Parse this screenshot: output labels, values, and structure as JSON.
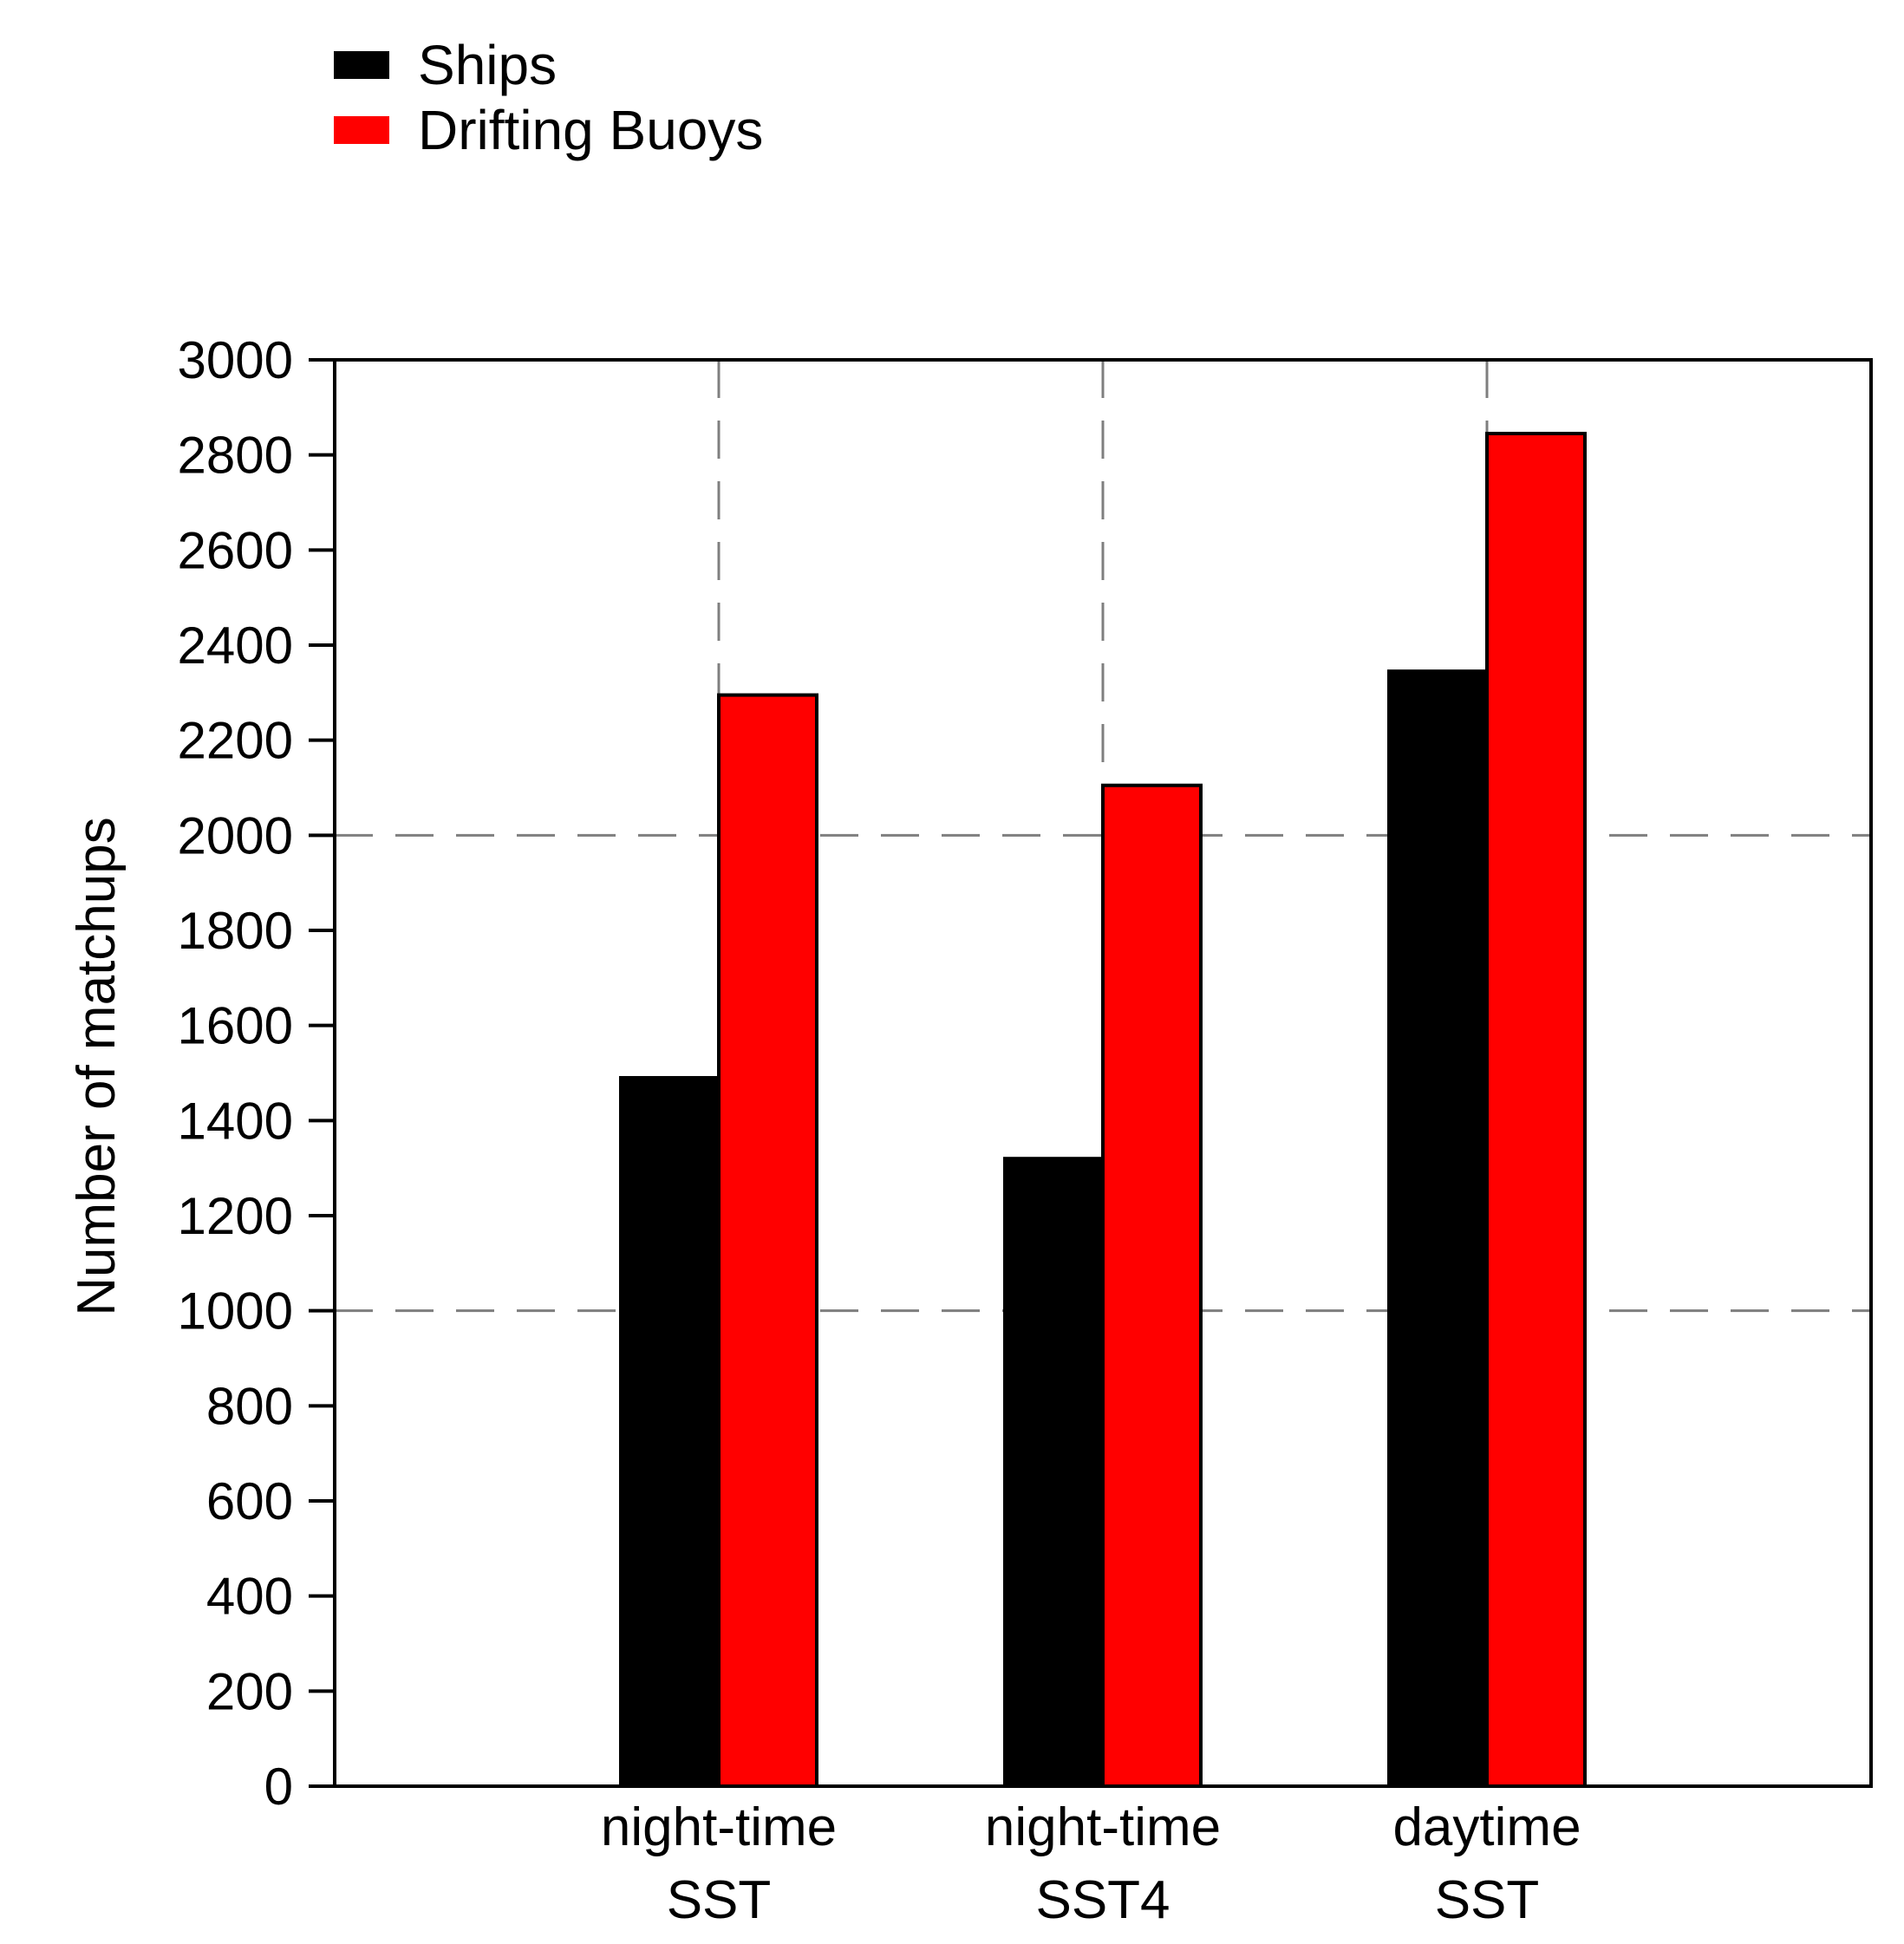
{
  "chart_data": {
    "type": "bar",
    "title": "",
    "xlabel": "",
    "ylabel": "Number of matchups",
    "categories": [
      [
        "night-time",
        "SST"
      ],
      [
        "night-time",
        "SST4"
      ],
      [
        "daytime",
        "SST"
      ]
    ],
    "series": [
      {
        "name": "Ships",
        "color": "#000000",
        "values": [
          1490,
          1320,
          2345
        ]
      },
      {
        "name": "Drifting Buoys",
        "color": "#ff0000",
        "values": [
          2295,
          2105,
          2845
        ]
      }
    ],
    "ylim": [
      0,
      3000
    ],
    "yticks": [
      0,
      200,
      400,
      600,
      800,
      1000,
      1200,
      1400,
      1600,
      1800,
      2000,
      2200,
      2400,
      2600,
      2800,
      3000
    ],
    "ygrid": [
      1000,
      2000
    ],
    "xgrid": "dashed at category centers",
    "legend_position": "top-left, above plot"
  }
}
